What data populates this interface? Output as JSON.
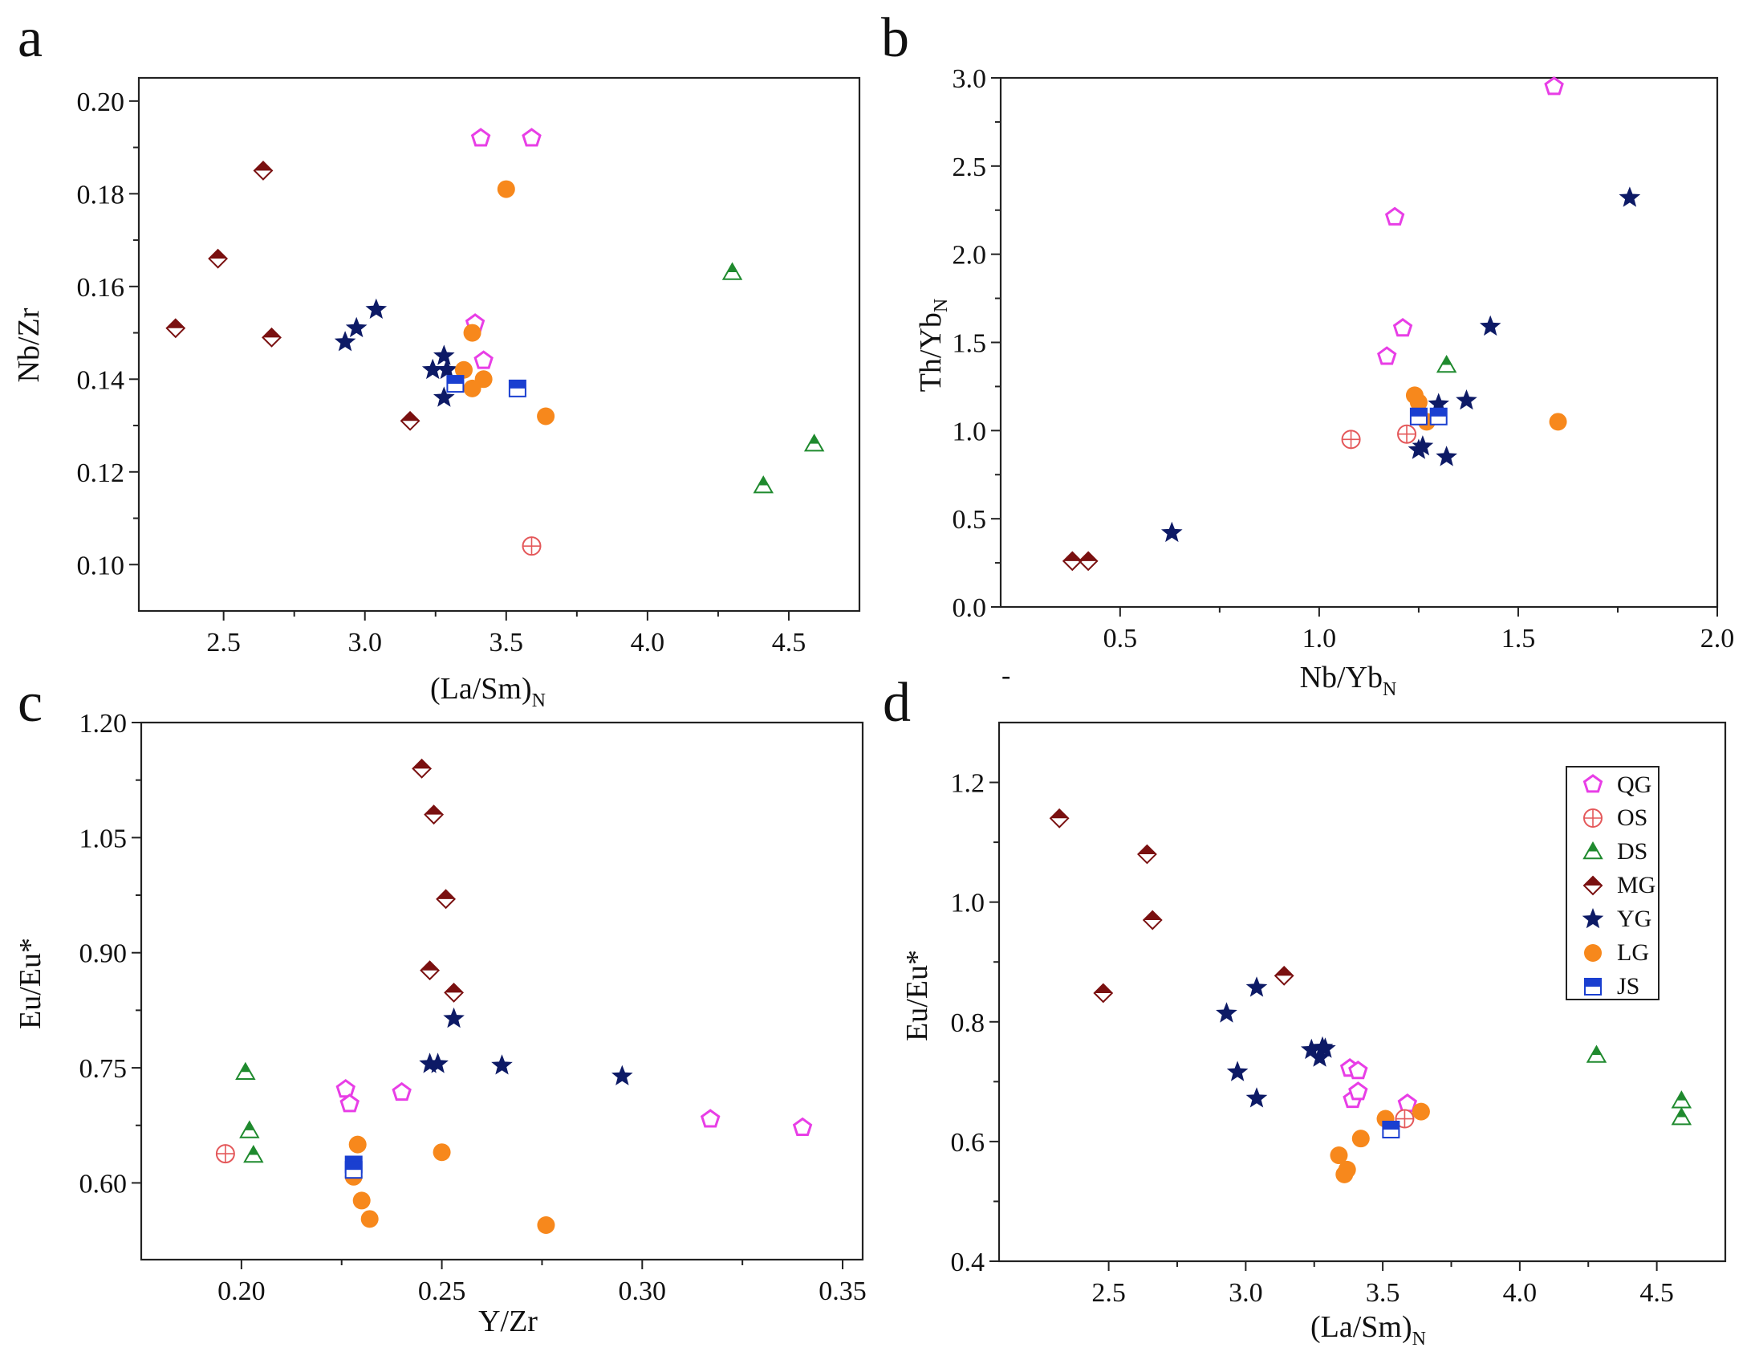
{
  "colors": {
    "QG": "#e83ee6",
    "OS": "#e4585a",
    "DS": "#1f8a2e",
    "MG": "#7a1010",
    "YG": "#0d1a66",
    "LG": "#f7881c",
    "JS": "#1a3fd0"
  },
  "legend": {
    "items": [
      {
        "key": "QG",
        "label": "QG",
        "marker": "pentagon"
      },
      {
        "key": "OS",
        "label": "OS",
        "marker": "circle-cross"
      },
      {
        "key": "DS",
        "label": "DS",
        "marker": "triangle"
      },
      {
        "key": "MG",
        "label": "MG",
        "marker": "diamond"
      },
      {
        "key": "YG",
        "label": "YG",
        "marker": "star"
      },
      {
        "key": "LG",
        "label": "LG",
        "marker": "circle"
      },
      {
        "key": "JS",
        "label": "JS",
        "marker": "square-half"
      }
    ]
  },
  "stray_mark": "-",
  "chart_data": [
    {
      "id": "a",
      "letter": "a",
      "type": "scatter",
      "xlabel": "(La/Sm)",
      "xlabel_sub": "N",
      "ylabel": "Nb/Zr",
      "xlim": [
        2.2,
        4.75
      ],
      "ylim": [
        0.09,
        0.205
      ],
      "xticks": [
        2.5,
        3.0,
        3.5,
        4.0,
        4.5
      ],
      "xticklabels": [
        "2.5",
        "3.0",
        "3.5",
        "4.0",
        "4.5"
      ],
      "yticks": [
        0.1,
        0.12,
        0.14,
        0.16,
        0.18,
        0.2
      ],
      "yticklabels": [
        "0.10",
        "0.12",
        "0.14",
        "0.16",
        "0.18",
        "0.20"
      ],
      "series": [
        {
          "group": "QG",
          "x": [
            3.41,
            3.59,
            3.39,
            3.42
          ],
          "y": [
            0.192,
            0.192,
            0.152,
            0.144
          ]
        },
        {
          "group": "OS",
          "x": [
            3.59
          ],
          "y": [
            0.104
          ]
        },
        {
          "group": "DS",
          "x": [
            4.3,
            4.59,
            4.41
          ],
          "y": [
            0.163,
            0.126,
            0.117
          ]
        },
        {
          "group": "MG",
          "x": [
            2.64,
            2.48,
            2.33,
            2.67,
            3.16
          ],
          "y": [
            0.185,
            0.166,
            0.151,
            0.149,
            0.131
          ]
        },
        {
          "group": "YG",
          "x": [
            2.93,
            2.97,
            3.04,
            3.24,
            3.28,
            3.29,
            3.28
          ],
          "y": [
            0.148,
            0.151,
            0.155,
            0.142,
            0.145,
            0.142,
            0.136
          ]
        },
        {
          "group": "LG",
          "x": [
            3.5,
            3.35,
            3.38,
            3.42,
            3.64,
            3.38
          ],
          "y": [
            0.181,
            0.142,
            0.138,
            0.14,
            0.132,
            0.15
          ]
        },
        {
          "group": "JS",
          "x": [
            3.32,
            3.54
          ],
          "y": [
            0.139,
            0.138
          ]
        }
      ]
    },
    {
      "id": "b",
      "letter": "b",
      "type": "scatter",
      "xlabel": "Nb/Yb",
      "xlabel_sub": "N",
      "ylabel": "Th/Yb",
      "ylabel_sub": "N",
      "xlim": [
        0.2,
        2.0
      ],
      "ylim": [
        0.0,
        3.0
      ],
      "xticks": [
        0.5,
        1.0,
        1.5,
        2.0
      ],
      "xticklabels": [
        "0.5",
        "1.0",
        "1.5",
        "2.0"
      ],
      "yticks": [
        0.0,
        0.5,
        1.0,
        1.5,
        2.0,
        2.5,
        3.0
      ],
      "yticklabels": [
        "0.0",
        "0.5",
        "1.0",
        "1.5",
        "2.0",
        "2.5",
        "3.0"
      ],
      "series": [
        {
          "group": "QG",
          "x": [
            1.59,
            1.19,
            1.21,
            1.17
          ],
          "y": [
            2.95,
            2.21,
            1.58,
            1.42
          ]
        },
        {
          "group": "OS",
          "x": [
            1.08,
            1.22
          ],
          "y": [
            0.95,
            0.98
          ]
        },
        {
          "group": "DS",
          "x": [
            1.32
          ],
          "y": [
            1.37
          ]
        },
        {
          "group": "MG",
          "x": [
            0.38,
            0.42
          ],
          "y": [
            0.26,
            0.26
          ]
        },
        {
          "group": "YG",
          "x": [
            1.78,
            1.43,
            1.37,
            1.3,
            1.25,
            1.26,
            1.32,
            0.63
          ],
          "y": [
            2.32,
            1.59,
            1.17,
            1.15,
            0.89,
            0.91,
            0.85,
            0.42
          ]
        },
        {
          "group": "LG",
          "x": [
            1.24,
            1.25,
            1.27,
            1.6
          ],
          "y": [
            1.2,
            1.16,
            1.05,
            1.05
          ]
        },
        {
          "group": "JS",
          "x": [
            1.25,
            1.3
          ],
          "y": [
            1.08,
            1.08
          ]
        }
      ]
    },
    {
      "id": "c",
      "letter": "c",
      "type": "scatter",
      "xlabel": "Y/Zr",
      "ylabel": "Eu/Eu*",
      "xlim": [
        0.175,
        0.355
      ],
      "ylim": [
        0.5,
        1.2
      ],
      "xticks": [
        0.2,
        0.25,
        0.3,
        0.35
      ],
      "xticklabels": [
        "0.20",
        "0.25",
        "0.30",
        "0.35"
      ],
      "yticks": [
        0.6,
        0.75,
        0.9,
        1.05,
        1.2
      ],
      "yticklabels": [
        "0.60",
        "0.75",
        "0.90",
        "1.05",
        "1.20"
      ],
      "series": [
        {
          "group": "QG",
          "x": [
            0.226,
            0.227,
            0.24,
            0.317,
            0.34
          ],
          "y": [
            0.722,
            0.703,
            0.718,
            0.683,
            0.672
          ]
        },
        {
          "group": "OS",
          "x": [
            0.196
          ],
          "y": [
            0.638
          ]
        },
        {
          "group": "DS",
          "x": [
            0.201,
            0.202,
            0.203
          ],
          "y": [
            0.744,
            0.668,
            0.636
          ]
        },
        {
          "group": "MG",
          "x": [
            0.245,
            0.248,
            0.251,
            0.247,
            0.253
          ],
          "y": [
            1.14,
            1.08,
            0.97,
            0.877,
            0.848
          ]
        },
        {
          "group": "YG",
          "x": [
            0.253,
            0.247,
            0.249,
            0.265,
            0.295
          ],
          "y": [
            0.814,
            0.755,
            0.755,
            0.753,
            0.739
          ]
        },
        {
          "group": "LG",
          "x": [
            0.229,
            0.228,
            0.25,
            0.23,
            0.232,
            0.276
          ],
          "y": [
            0.65,
            0.608,
            0.64,
            0.577,
            0.553,
            0.545
          ]
        },
        {
          "group": "JS",
          "x": [
            0.228,
            0.228
          ],
          "y": [
            0.624,
            0.617
          ]
        }
      ]
    },
    {
      "id": "d",
      "letter": "d",
      "type": "scatter",
      "xlabel": "(La/Sm)",
      "xlabel_sub": "N",
      "ylabel": "Eu/Eu*",
      "xlim": [
        2.1,
        4.75
      ],
      "ylim": [
        0.4,
        1.3
      ],
      "xticks": [
        2.5,
        3.0,
        3.5,
        4.0,
        4.5
      ],
      "xticklabels": [
        "2.5",
        "3.0",
        "3.5",
        "4.0",
        "4.5"
      ],
      "yticks": [
        0.4,
        0.6,
        0.8,
        1.0,
        1.2
      ],
      "yticklabels": [
        "0.4",
        "0.6",
        "0.8",
        "1.0",
        "1.2"
      ],
      "legend_position": "top-right",
      "series": [
        {
          "group": "QG",
          "x": [
            3.38,
            3.41,
            3.59,
            3.39,
            3.41
          ],
          "y": [
            0.722,
            0.718,
            0.663,
            0.67,
            0.683
          ]
        },
        {
          "group": "OS",
          "x": [
            3.58
          ],
          "y": [
            0.638
          ]
        },
        {
          "group": "DS",
          "x": [
            4.28,
            4.59,
            4.59
          ],
          "y": [
            0.744,
            0.668,
            0.64
          ]
        },
        {
          "group": "MG",
          "x": [
            2.32,
            2.64,
            2.66,
            2.48,
            3.14
          ],
          "y": [
            1.14,
            1.08,
            0.97,
            0.848,
            0.877
          ]
        },
        {
          "group": "YG",
          "x": [
            2.93,
            3.04,
            2.97,
            3.04,
            3.24,
            3.28,
            3.27,
            3.29
          ],
          "y": [
            0.814,
            0.857,
            0.716,
            0.672,
            0.753,
            0.757,
            0.74,
            0.755
          ]
        },
        {
          "group": "LG",
          "x": [
            3.34,
            3.37,
            3.36,
            3.42,
            3.51,
            3.64
          ],
          "y": [
            0.577,
            0.553,
            0.545,
            0.605,
            0.638,
            0.65
          ]
        },
        {
          "group": "JS",
          "x": [
            3.53
          ],
          "y": [
            0.62
          ]
        }
      ]
    }
  ]
}
